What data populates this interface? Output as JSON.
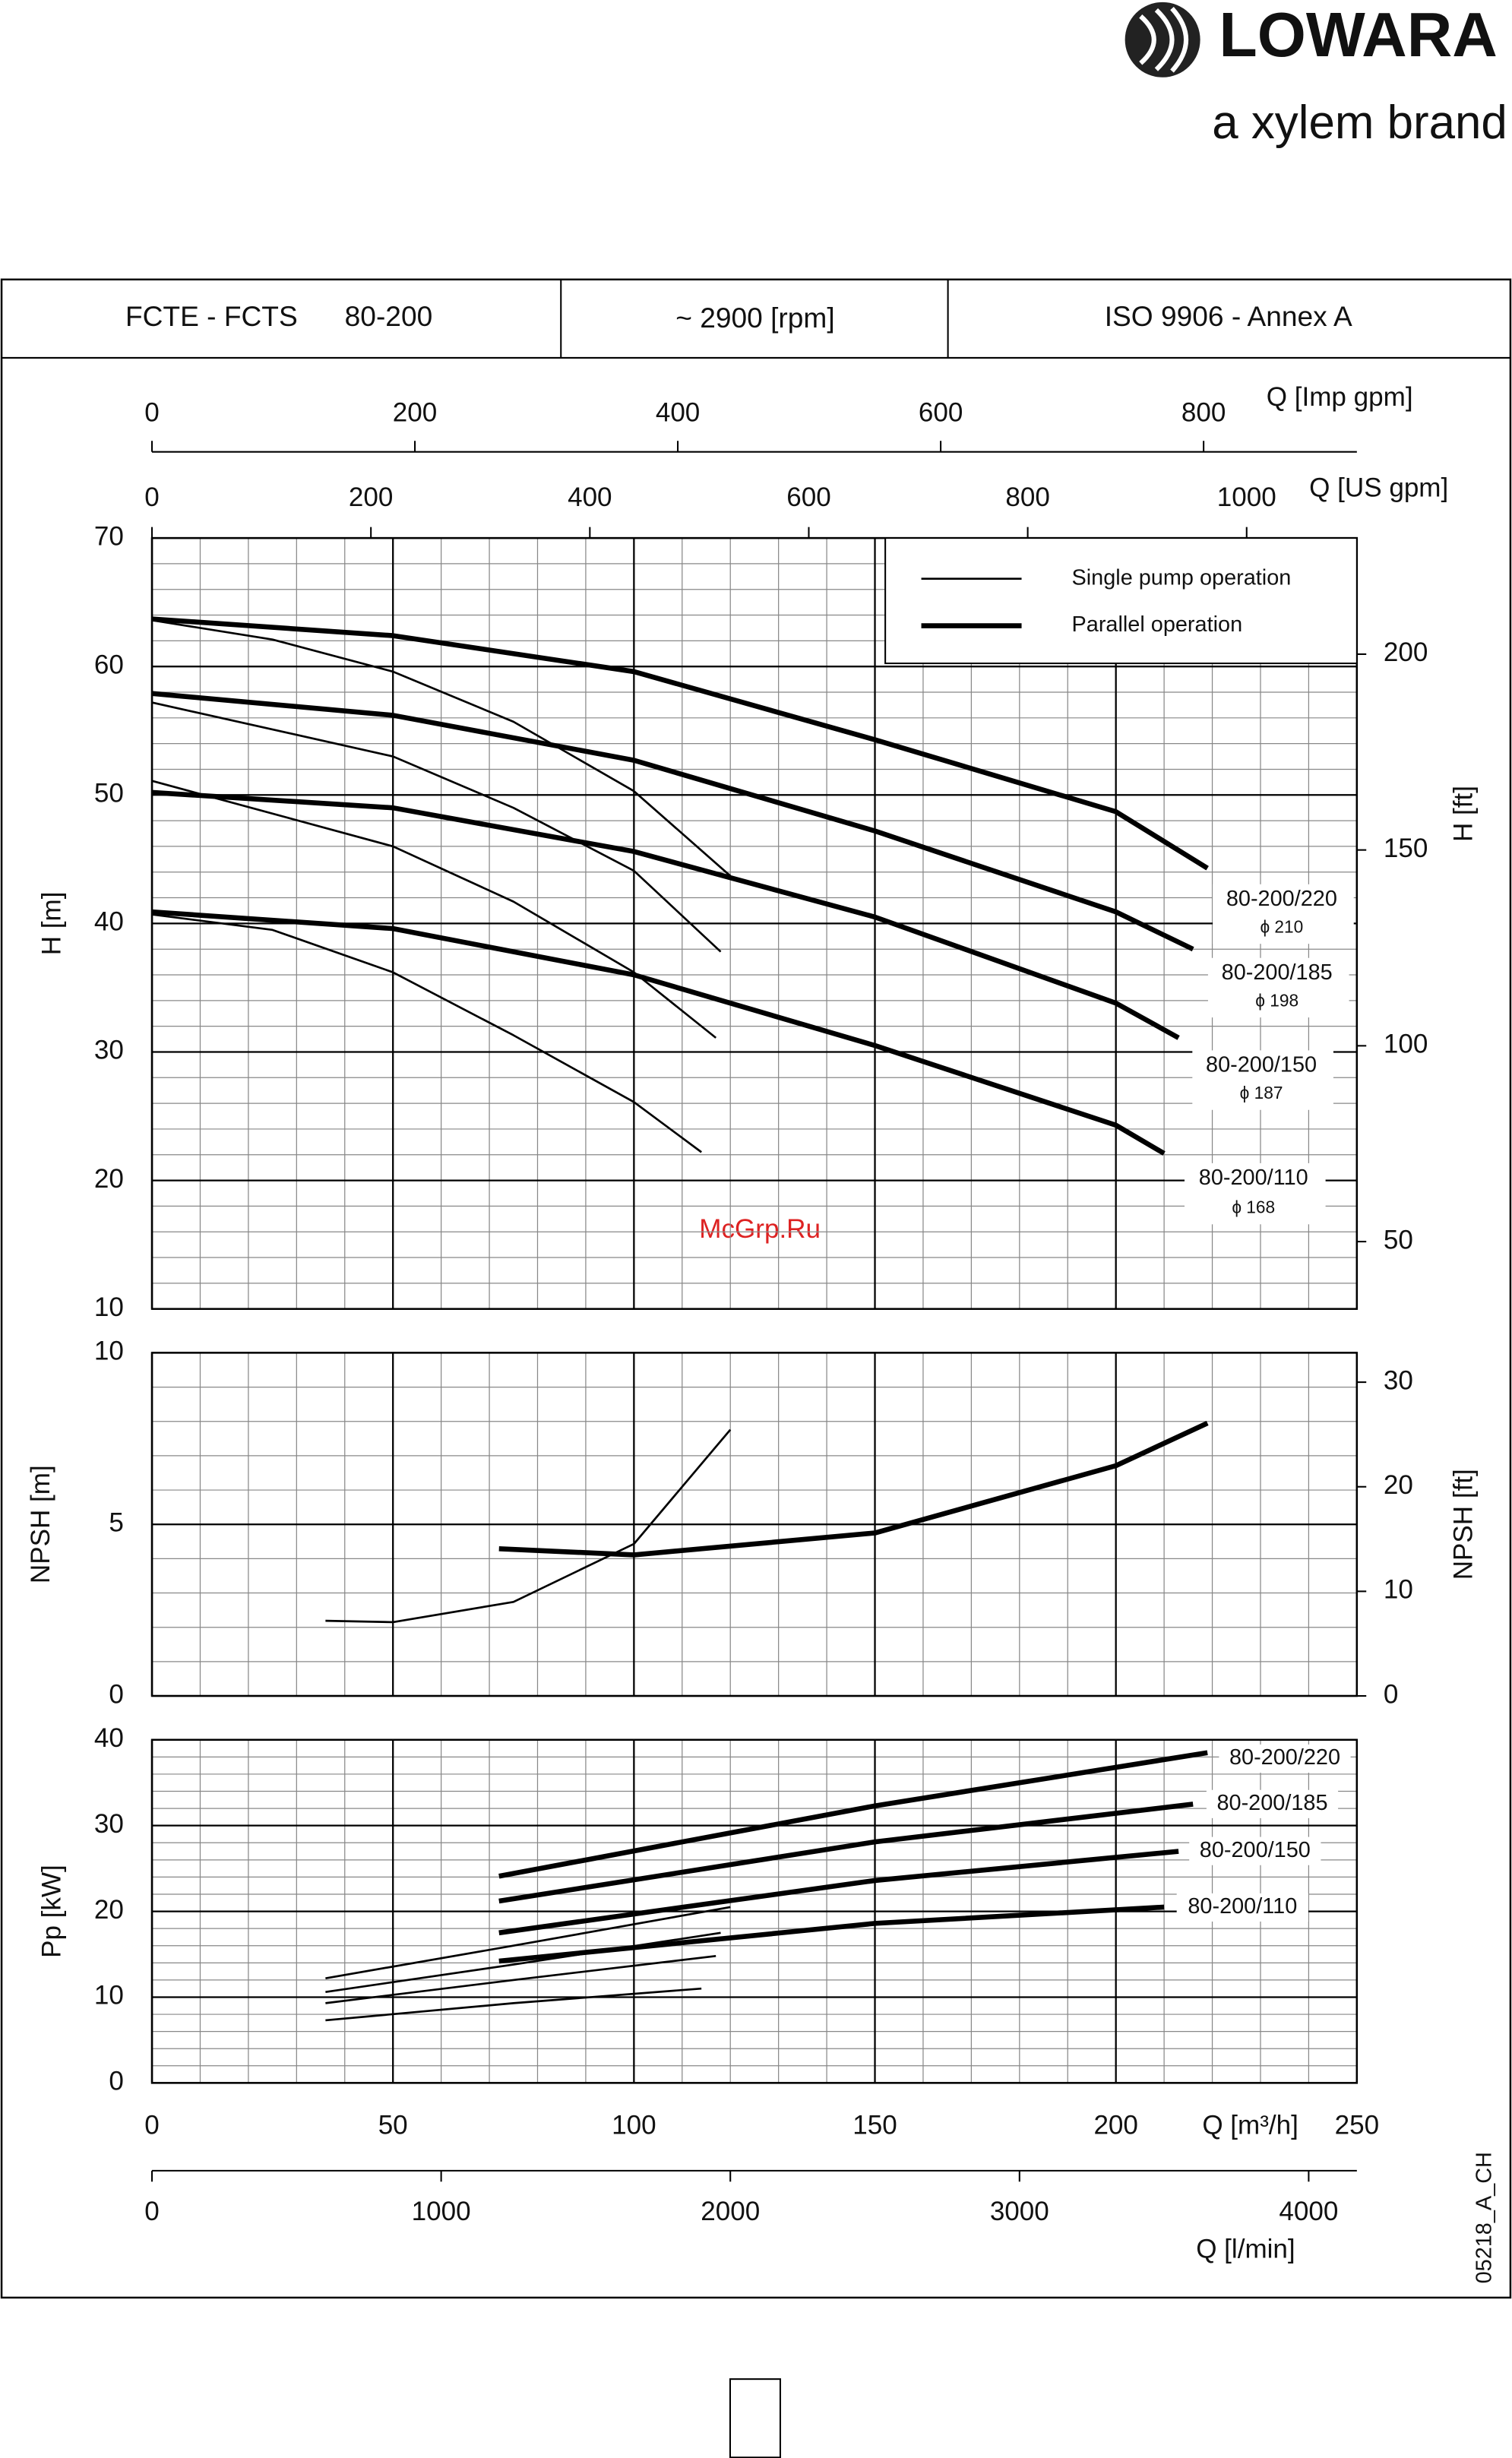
{
  "brand": {
    "name": "LOWARA",
    "tagline": "a xylem brand"
  },
  "header": {
    "model": "FCTE - FCTS",
    "size": "80-200",
    "speed": "~ 2900 [rpm]",
    "standard": "ISO 9906 - Annex A"
  },
  "watermark": "McGrp.Ru",
  "doc_code": "05218_A_CH",
  "chart_data": [
    {
      "type": "line",
      "ylabel": "H [m]",
      "y2label": "H [ft]",
      "xlim": [
        0,
        250
      ],
      "xticks": [
        0,
        50,
        100,
        150,
        200,
        250
      ],
      "ylim": [
        10,
        70
      ],
      "yticks": [
        10,
        20,
        30,
        40,
        50,
        60,
        70
      ],
      "y2lim": [
        32.81,
        229.66
      ],
      "y2ticks": [
        50,
        100,
        150,
        200
      ],
      "minor_grid": {
        "x": 10,
        "y": 2
      },
      "grid": true,
      "legend": {
        "single": "Single pump operation",
        "parallel": "Parallel operation"
      },
      "top_axes": [
        {
          "label": "Q [Imp gpm]",
          "lim": [
            0,
            916.6
          ],
          "ticks": [
            0,
            200,
            400,
            600,
            800
          ]
        },
        {
          "label": "Q [US gpm]",
          "lim": [
            0,
            1100.7
          ],
          "ticks": [
            0,
            200,
            400,
            600,
            800,
            1000
          ]
        }
      ],
      "curves": [
        {
          "label": "80-200/220",
          "diameter": "ϕ 210",
          "single": {
            "x": [
              0,
              25,
              50,
              75,
              100,
              120
            ],
            "values": [
              63.6,
              62.1,
              59.6,
              55.7,
              50.3,
              43.7
            ]
          },
          "parallel": {
            "x": [
              0,
              50,
              100,
              150,
              200,
              219
            ],
            "values": [
              63.7,
              62.4,
              59.6,
              54.3,
              48.7,
              44.3
            ]
          }
        },
        {
          "label": "80-200/185",
          "diameter": "ϕ 198",
          "single": {
            "x": [
              0,
              50,
              75,
              100,
              118
            ],
            "values": [
              57.2,
              53.0,
              49.0,
              44.1,
              37.8
            ]
          },
          "parallel": {
            "x": [
              0,
              50,
              100,
              150,
              200,
              216
            ],
            "values": [
              57.9,
              56.2,
              52.7,
              47.2,
              40.9,
              38.0
            ]
          }
        },
        {
          "label": "80-200/150",
          "diameter": "ϕ 187",
          "single": {
            "x": [
              0,
              50,
              75,
              100,
              117
            ],
            "values": [
              51.1,
              46.0,
              41.7,
              36.2,
              31.1
            ]
          },
          "parallel": {
            "x": [
              0,
              50,
              100,
              150,
              200,
              213
            ],
            "values": [
              50.2,
              49.0,
              45.6,
              40.5,
              33.8,
              31.1
            ]
          }
        },
        {
          "label": "80-200/110",
          "diameter": "ϕ 168",
          "single": {
            "x": [
              0,
              25,
              50,
              75,
              100,
              114
            ],
            "values": [
              40.7,
              39.5,
              36.2,
              31.3,
              26.1,
              22.2
            ]
          },
          "parallel": {
            "x": [
              0,
              50,
              100,
              150,
              200,
              210
            ],
            "values": [
              40.9,
              39.6,
              36.0,
              30.5,
              24.3,
              22.1
            ]
          }
        }
      ]
    },
    {
      "type": "line",
      "ylabel": "NPSH [m]",
      "y2label": "NPSH [ft]",
      "xlim": [
        0,
        250
      ],
      "xticks": [
        0,
        50,
        100,
        150,
        200,
        250
      ],
      "ylim": [
        0,
        10
      ],
      "yticks": [
        0,
        5,
        10
      ],
      "y2lim": [
        0,
        32.81
      ],
      "y2ticks": [
        0,
        10,
        20,
        30
      ],
      "minor_grid": {
        "x": 10,
        "y": 1
      },
      "grid": true,
      "curves": [
        {
          "single": {
            "x": [
              36,
              50,
              75,
              100,
              120
            ],
            "values": [
              2.19,
              2.15,
              2.74,
              4.43,
              7.76
            ]
          },
          "parallel": {
            "x": [
              72,
              100,
              150,
              200,
              219
            ],
            "values": [
              4.29,
              4.11,
              4.75,
              6.71,
              7.95
            ]
          }
        }
      ]
    },
    {
      "type": "line",
      "ylabel": "Pp [kW]",
      "xlabel": "Q [m³/h]",
      "xlim": [
        0,
        250
      ],
      "xticks": [
        0,
        50,
        100,
        150,
        200,
        250
      ],
      "ylim": [
        0,
        40
      ],
      "yticks": [
        0,
        10,
        20,
        30,
        40
      ],
      "minor_grid": {
        "x": 10,
        "y": 2
      },
      "grid": true,
      "bottom_axis": {
        "label": "Q [l/min]",
        "lim": [
          0,
          4166.7
        ],
        "ticks": [
          0,
          1000,
          2000,
          3000,
          4000
        ]
      },
      "curves": [
        {
          "label": "80-200/220",
          "single": {
            "x": [
              36,
              75,
              120
            ],
            "values": [
              12.2,
              16.0,
              20.5
            ]
          },
          "parallel": {
            "x": [
              72,
              150,
              219
            ],
            "values": [
              24.1,
              32.3,
              38.5
            ]
          }
        },
        {
          "label": "80-200/185",
          "single": {
            "x": [
              36,
              75,
              118
            ],
            "values": [
              10.6,
              13.8,
              17.5
            ]
          },
          "parallel": {
            "x": [
              72,
              150,
              216
            ],
            "values": [
              21.2,
              28.1,
              32.5
            ]
          }
        },
        {
          "label": "80-200/150",
          "single": {
            "x": [
              36,
              75,
              117
            ],
            "values": [
              9.3,
              12.0,
              14.8
            ]
          },
          "parallel": {
            "x": [
              72,
              150,
              213
            ],
            "values": [
              17.5,
              23.6,
              27.0
            ]
          }
        },
        {
          "label": "80-200/110",
          "single": {
            "x": [
              36,
              75,
              114
            ],
            "values": [
              7.3,
              9.3,
              11.0
            ]
          },
          "parallel": {
            "x": [
              72,
              150,
              210
            ],
            "values": [
              14.2,
              18.6,
              20.5
            ]
          }
        }
      ]
    }
  ]
}
